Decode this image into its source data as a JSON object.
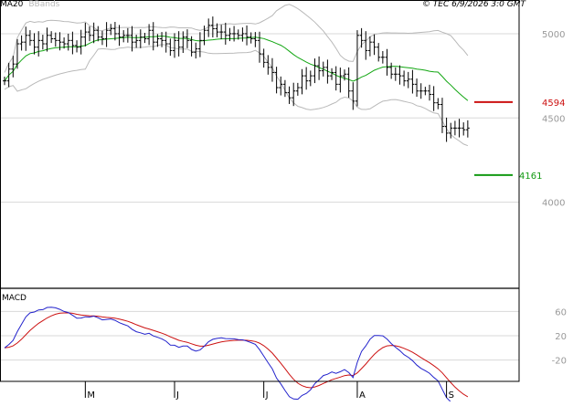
{
  "legend": {
    "ma_label": "MA20",
    "ma_color": "#12a612",
    "bb_label": "BBands",
    "bb_color": "#b9b9b9"
  },
  "credit": "© TEC 6/9/2026 3:0 GMT",
  "colors": {
    "price": "#000000",
    "ma": "#12a612",
    "bbands": "#b9b9b9",
    "macd": "#2222cc",
    "signal": "#cc1111",
    "resistance": "#cc1111",
    "support": "#129912",
    "grid": "#d8d8d8",
    "axis": "#000000"
  },
  "chart_data": [
    {
      "type": "bar",
      "subtype": "ohlc",
      "ylim": [
        3500,
        5200
      ],
      "ytick_labels": [
        {
          "label": "5000",
          "value": 5000
        },
        {
          "label": "4500",
          "value": 4500
        },
        {
          "label": "4000",
          "value": 4000
        }
      ],
      "month_ticks": [
        {
          "label": "M",
          "index": 19
        },
        {
          "label": "J",
          "index": 40
        },
        {
          "label": "J",
          "index": 61
        },
        {
          "label": "A",
          "index": 83
        },
        {
          "label": "S",
          "index": 104
        }
      ],
      "closes": [
        4720,
        4790,
        4820,
        4940,
        4950,
        4990,
        4960,
        4920,
        4960,
        4940,
        4990,
        4970,
        4960,
        4950,
        4940,
        4960,
        4930,
        4920,
        4980,
        5010,
        4990,
        5020,
        4980,
        4970,
        5020,
        5030,
        5000,
        4980,
        4990,
        4990,
        4950,
        4960,
        4980,
        4970,
        5020,
        4950,
        4970,
        4960,
        4940,
        4900,
        4960,
        4920,
        4980,
        4960,
        4890,
        4910,
        4960,
        5020,
        5050,
        5030,
        5010,
        5010,
        4990,
        5000,
        5000,
        4990,
        5000,
        4980,
        4970,
        4960,
        4880,
        4830,
        4800,
        4770,
        4680,
        4700,
        4650,
        4620,
        4660,
        4680,
        4750,
        4720,
        4750,
        4810,
        4780,
        4800,
        4750,
        4770,
        4700,
        4750,
        4760,
        4660,
        4600,
        4990,
        4960,
        4900,
        4950,
        4920,
        4860,
        4860,
        4800,
        4760,
        4760,
        4750,
        4720,
        4730,
        4700,
        4660,
        4660,
        4660,
        4640,
        4590,
        4580,
        4450,
        4410,
        4440,
        4440,
        4440,
        4430,
        4440
      ],
      "levels": [
        {
          "label": "4594",
          "value": 4594,
          "kind": "resistance"
        },
        {
          "label": "4161",
          "value": 4161,
          "kind": "support"
        }
      ],
      "series": [
        {
          "name": "MA20",
          "kind": "line"
        },
        {
          "name": "BBands",
          "kind": "band"
        }
      ]
    },
    {
      "type": "line",
      "ylim": [
        -55,
        95
      ],
      "ytick_labels": [
        {
          "label": "60",
          "value": 60
        },
        {
          "label": "20",
          "value": 20
        },
        {
          "label": "-20",
          "value": -20
        }
      ],
      "series": [
        {
          "name": "MACD",
          "kind": "line"
        },
        {
          "name": "",
          "kind": "line"
        }
      ]
    }
  ],
  "macd_label": "MACD"
}
